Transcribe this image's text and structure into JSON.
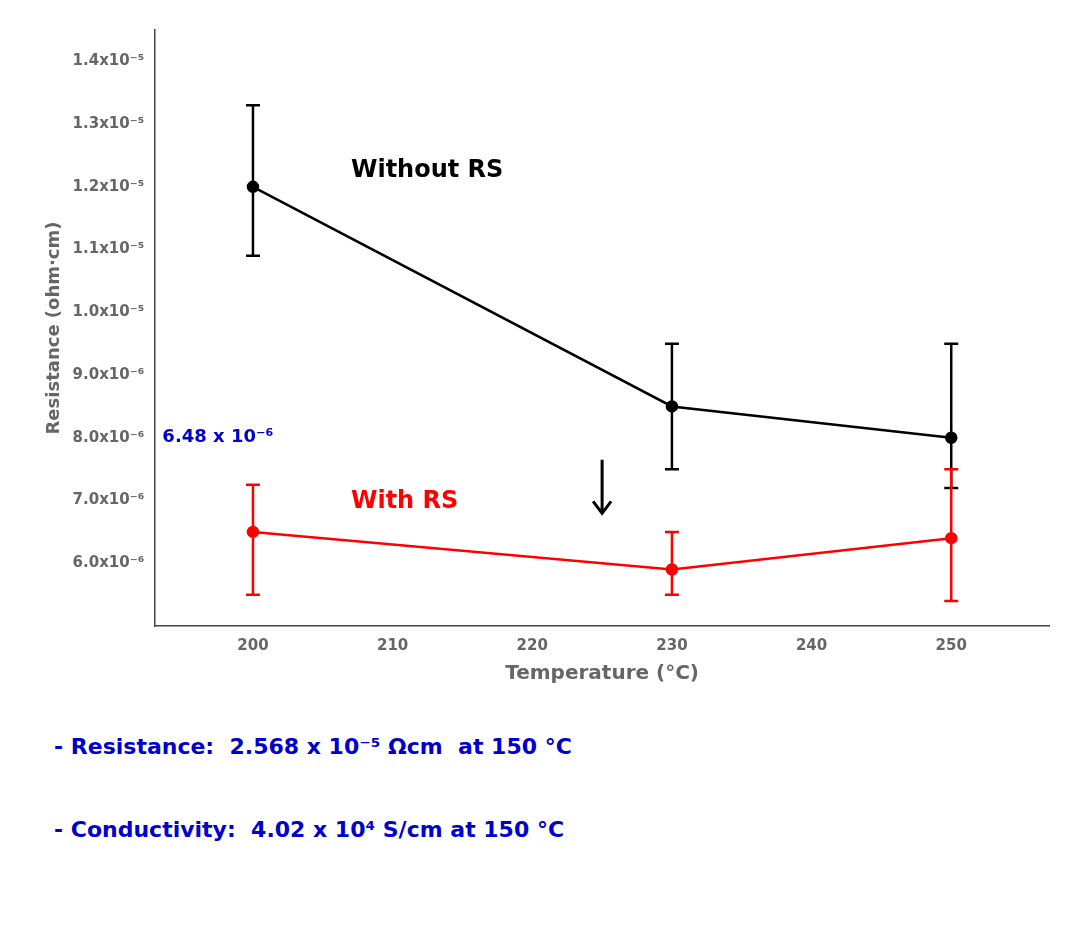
{
  "chart_data": {
    "type": "line",
    "xlabel": "Temperature (°C)",
    "ylabel": "Resistance (ohm·cm)",
    "x": [
      200,
      230,
      250
    ],
    "series": [
      {
        "color": "black",
        "marker": "circle",
        "values": [
          1.2e-05,
          8.5e-06,
          8e-06
        ],
        "yerr_lower": [
          1.1e-06,
          1e-06,
          8e-07
        ],
        "yerr_upper": [
          1.3e-06,
          1e-06,
          1.5e-06
        ]
      },
      {
        "color": "red",
        "marker": "circle",
        "values": [
          6.5e-06,
          5.9e-06,
          6.4e-06
        ],
        "yerr_lower": [
          1e-06,
          4e-07,
          1e-06
        ],
        "yerr_upper": [
          7.5e-07,
          6e-07,
          1.1e-06
        ]
      }
    ],
    "xlim": [
      193,
      257
    ],
    "ylim": [
      5e-06,
      1.45e-05
    ],
    "xticks": [
      200,
      210,
      220,
      230,
      240,
      250
    ],
    "yticks": [
      {
        "value": 6e-06,
        "label": "6.0x10⁻⁶"
      },
      {
        "value": 7e-06,
        "label": "7.0x10⁻⁶"
      },
      {
        "value": 8e-06,
        "label": "8.0x10⁻⁶"
      },
      {
        "value": 9e-06,
        "label": "9.0x10⁻⁶"
      },
      {
        "value": 1e-05,
        "label": "1.0x10⁻⁵"
      },
      {
        "value": 1.1e-05,
        "label": "1.1x10⁻⁵"
      },
      {
        "value": 1.2e-05,
        "label": "1.2x10⁻⁵"
      },
      {
        "value": 1.3e-05,
        "label": "1.3x10⁻⁵"
      },
      {
        "value": 1.4e-05,
        "label": "1.4x10⁻⁵"
      }
    ],
    "grid": false,
    "annotations": [
      {
        "text": "Without RS",
        "color": "black"
      },
      {
        "text": "6.48 x 10⁻⁶",
        "color": "#0000CD"
      },
      {
        "text": "With RS",
        "color": "red"
      },
      {
        "text": "- Resistance:  2.568 x 10⁻⁵ Ωcm  at 150 °C",
        "color": "#0000CD"
      },
      {
        "text": "- Conductivity:  4.02 x 10⁴ S/cm at 150 °C",
        "color": "#0000CD"
      }
    ]
  }
}
